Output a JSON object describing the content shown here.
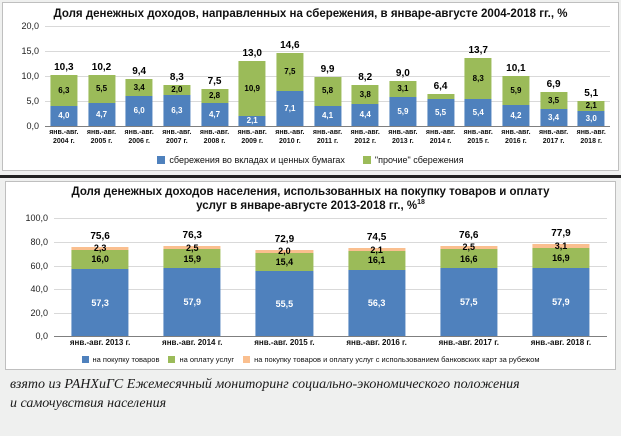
{
  "caption": "взято из РАНХиГС Ежемесячный мониторинг социально-экономического положения и самочувствия населения",
  "chart_data": [
    {
      "type": "bar",
      "stacked": true,
      "title": "Доля денежных доходов, направленных на сбережения, в январе-августе 2004-2018 гг., %",
      "ylim": [
        0,
        20
      ],
      "grid": true,
      "legend_position": "bottom",
      "yticks": [
        "20,0",
        "15,0",
        "10,0",
        "5,0",
        "0,0"
      ],
      "categories": [
        [
          "янв.-авг.",
          "2004 г."
        ],
        [
          "янв.-авг.",
          "2005 г."
        ],
        [
          "янв.-авг.",
          "2006 г."
        ],
        [
          "янв.-авг.",
          "2007 г."
        ],
        [
          "янв.-авг.",
          "2008 г."
        ],
        [
          "янв.-авг.",
          "2009 г."
        ],
        [
          "янв.-авг.",
          "2010 г."
        ],
        [
          "янв.-авг.",
          "2011 г."
        ],
        [
          "янв.-авг.",
          "2012 г."
        ],
        [
          "янв.-авг.",
          "2013 г."
        ],
        [
          "янв.-авг.",
          "2014 г."
        ],
        [
          "янв.-авг.",
          "2015 г."
        ],
        [
          "янв.-авг.",
          "2016 г."
        ],
        [
          "янв.-авг.",
          "2017 г."
        ],
        [
          "янв.-авг.",
          "2018 г."
        ]
      ],
      "series": [
        {
          "name": "сбережения во вкладах и ценных бумагах",
          "color": "#4f81bd",
          "values": [
            4.0,
            4.7,
            6.0,
            6.3,
            4.7,
            2.1,
            7.1,
            4.1,
            4.4,
            5.9,
            5.5,
            5.4,
            4.2,
            3.4,
            3.0
          ],
          "labels": [
            "4,0",
            "4,7",
            "6,0",
            "6,3",
            "4,7",
            "2,1",
            "7,1",
            "4,1",
            "4,4",
            "5,9",
            "5,5",
            "5,4",
            "4,2",
            "3,4",
            "3,0"
          ]
        },
        {
          "name": "\"прочие\" сбережения",
          "color": "#9bbb59",
          "values": [
            6.3,
            5.5,
            3.4,
            2.0,
            2.8,
            10.9,
            7.5,
            5.8,
            3.8,
            3.1,
            0.9,
            8.3,
            5.9,
            3.5,
            2.1
          ],
          "labels": [
            "6,3",
            "5,5",
            "3,4",
            "2,0",
            "2,8",
            "10,9",
            "7,5",
            "5,8",
            "3,8",
            "3,1",
            "0,9",
            "8,3",
            "5,9",
            "3,5",
            "2,1"
          ]
        }
      ],
      "totals": [
        "10,3",
        "10,2",
        "9,4",
        "8,3",
        "7,5",
        "13,0",
        "14,6",
        "9,9",
        "8,2",
        "9,0",
        "6,4",
        "13,7",
        "10,1",
        "6,9",
        "5,1"
      ]
    },
    {
      "type": "bar",
      "stacked": true,
      "title": "Доля денежных доходов населения, использованных на покупку товаров и оплату услуг в январе-августе 2013-2018 гг., %",
      "title_sup": "18",
      "ylim": [
        0,
        100
      ],
      "grid": true,
      "legend_position": "bottom",
      "yticks": [
        "100,0",
        "80,0",
        "60,0",
        "40,0",
        "20,0",
        "0,0"
      ],
      "categories": [
        "янв.-авг. 2013 г.",
        "янв.-авг. 2014 г.",
        "янв.-авг. 2015 г.",
        "янв.-авг. 2016 г.",
        "янв.-авг. 2017 г.",
        "янв.-авг. 2018 г."
      ],
      "series": [
        {
          "name": "на покупку товаров",
          "color": "#4f81bd",
          "values": [
            57.3,
            57.9,
            55.5,
            56.3,
            57.5,
            57.9
          ],
          "labels": [
            "57,3",
            "57,9",
            "55,5",
            "56,3",
            "57,5",
            "57,9"
          ]
        },
        {
          "name": "на оплату услуг",
          "color": "#9bbb59",
          "values": [
            16.0,
            15.9,
            15.4,
            16.1,
            16.6,
            16.9
          ],
          "labels": [
            "16,0",
            "15,9",
            "15,4",
            "16,1",
            "16,6",
            "16,9"
          ]
        },
        {
          "name": "на покупку товаров и оплату услуг с использованием банковских карт за рубежом",
          "color": "#fabf8f",
          "values": [
            2.3,
            2.5,
            2.0,
            2.1,
            2.5,
            3.1
          ],
          "labels": [
            "2,3",
            "2,5",
            "2,0",
            "2,1",
            "2,5",
            "3,1"
          ]
        }
      ],
      "totals": [
        "75,6",
        "76,3",
        "72,9",
        "74,5",
        "76,6",
        "77,9"
      ]
    }
  ]
}
